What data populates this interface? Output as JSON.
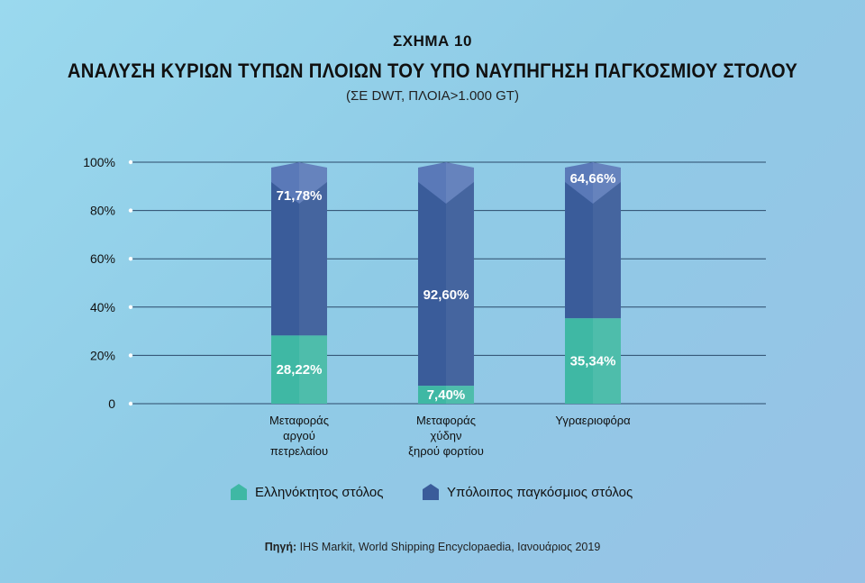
{
  "header": {
    "figure_no": "ΣΧΗΜΑ 10",
    "title": "ΑΝΑΛΥΣΗ ΚΥΡΙΩΝ ΤΥΠΩΝ ΠΛΟΙΩΝ ΤΟΥ ΥΠΟ ΝΑΥΠΗΓΗΣΗ ΠΑΓΚΟΣΜΙΟΥ ΣΤΟΛΟΥ",
    "subtitle": "(ΣΕ DWT, ΠΛΟΙΑ>1.000 GT)"
  },
  "colors": {
    "greek": "#3fb8a4",
    "rest": "#3a5c9a",
    "rest_cap": "#5a79b8"
  },
  "chart_data": {
    "type": "bar",
    "stacked": true,
    "categories": [
      [
        "Μεταφοράς",
        "αργού",
        "πετρελαίου"
      ],
      [
        "Μεταφοράς",
        "χύδην",
        "ξηρού φορτίου"
      ],
      [
        "Υγραεριοφόρα"
      ]
    ],
    "series": [
      {
        "name": "Ελληνόκτητος στόλος",
        "values": [
          28.22,
          7.4,
          35.34
        ],
        "labels": [
          "28,22%",
          "7,40%",
          "35,34%"
        ]
      },
      {
        "name": "Υπόλοιπος παγκόσμιος στόλος",
        "values": [
          71.78,
          92.6,
          64.66
        ],
        "labels": [
          "71,78%",
          "92,60%",
          "64,66%"
        ]
      }
    ],
    "ylim": [
      0,
      100
    ],
    "yticks": [
      "0",
      "20%",
      "40%",
      "60%",
      "80%",
      "100%"
    ],
    "grid": true,
    "legend": "bottom"
  },
  "source": {
    "label": "Πηγή:",
    "text": "IHS Markit, World Shipping Encyclopaedia, Ιανουάριος 2019"
  }
}
